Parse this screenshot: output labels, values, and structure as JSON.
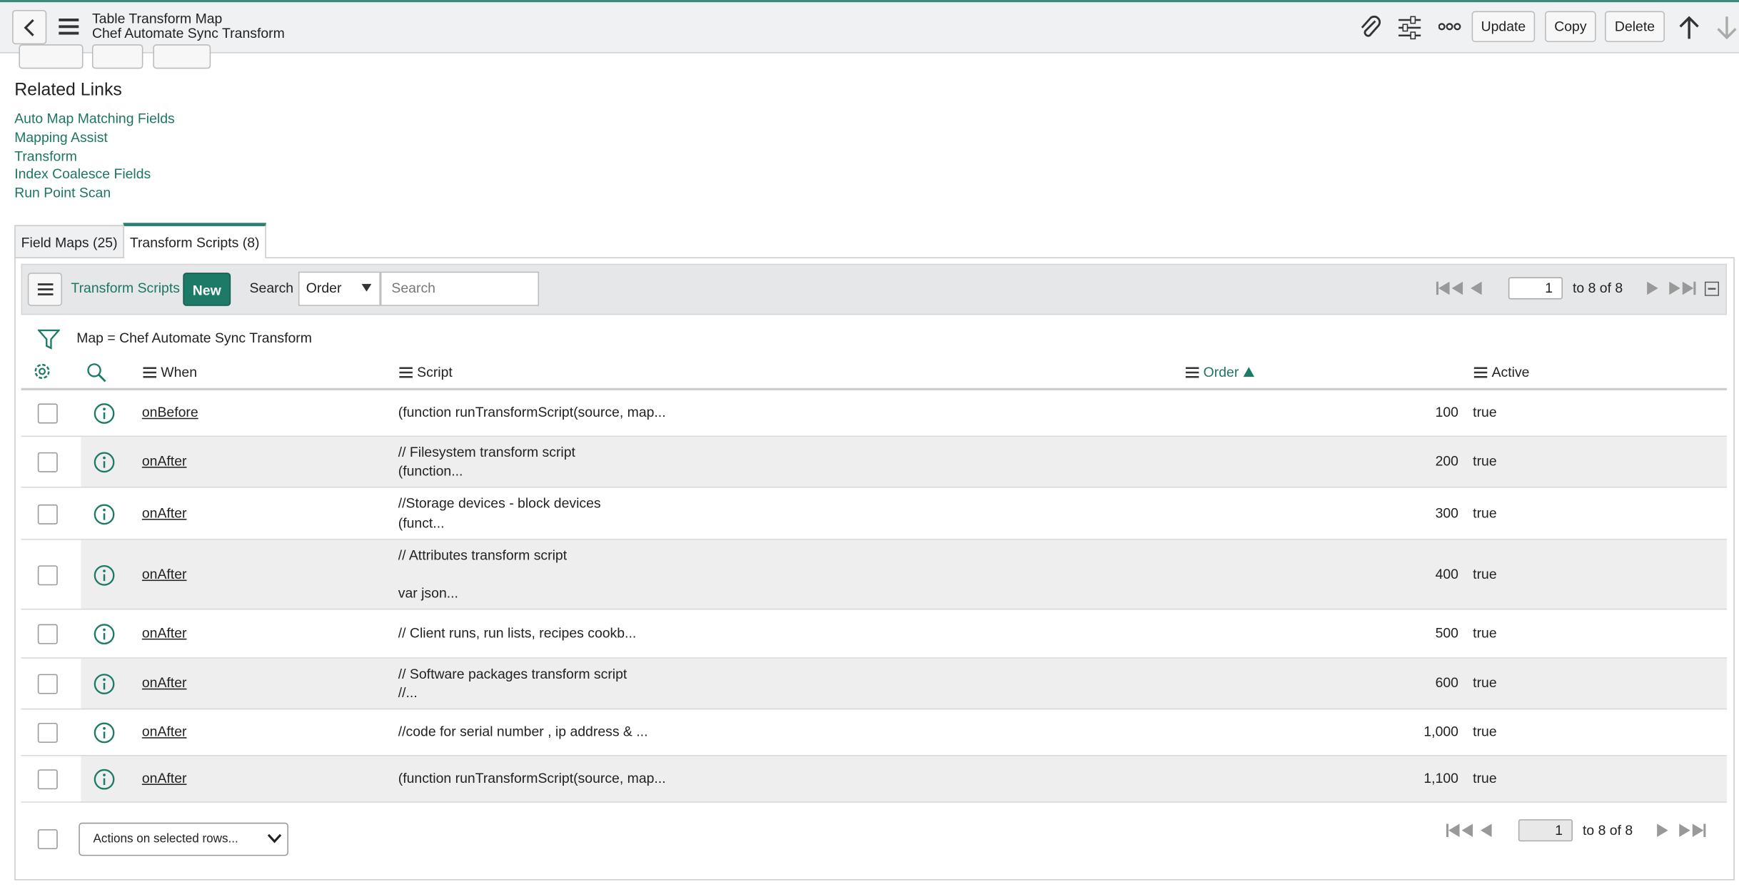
{
  "header": {
    "title": "Table Transform Map",
    "subtitle": "Chef Automate Sync Transform",
    "buttons": [
      "Update",
      "Copy",
      "Delete"
    ]
  },
  "related_links": {
    "title": "Related Links",
    "links": [
      "Auto Map Matching Fields",
      "Mapping Assist",
      "Transform",
      "Index Coalesce Fields",
      "Run Point Scan"
    ]
  },
  "tabs": [
    "Field Maps (25)",
    "Transform Scripts (8)"
  ],
  "list": {
    "title": "Transform Scripts",
    "new_button": "New",
    "search_label": "Search",
    "search_field": "Order",
    "search_placeholder": "Search",
    "pagination": {
      "page": "1",
      "range": "to 8 of 8"
    },
    "filter": "Map = Chef Automate Sync Transform",
    "columns": [
      "When",
      "Script",
      "Order",
      "Active"
    ],
    "rows": [
      {
        "when": "onBefore",
        "script": [
          "(function runTransformScript(source, map..."
        ],
        "order": "100",
        "active": "true"
      },
      {
        "when": "onAfter",
        "script": [
          "// Filesystem transform script",
          "(function..."
        ],
        "order": "200",
        "active": "true"
      },
      {
        "when": "onAfter",
        "script": [
          "//Storage devices - block devices",
          "(funct..."
        ],
        "order": "300",
        "active": "true"
      },
      {
        "when": "onAfter",
        "script": [
          "// Attributes transform script",
          "var json..."
        ],
        "order": "400",
        "active": "true"
      },
      {
        "when": "onAfter",
        "script": [
          "// Client runs, run lists, recipes cookb..."
        ],
        "order": "500",
        "active": "true"
      },
      {
        "when": "onAfter",
        "script": [
          "// Software packages transform script",
          "//..."
        ],
        "order": "600",
        "active": "true"
      },
      {
        "when": "onAfter",
        "script": [
          "//code for serial number , ip address & ..."
        ],
        "order": "1,000",
        "active": "true"
      },
      {
        "when": "onAfter",
        "script": [
          "(function runTransformScript(source, map..."
        ],
        "order": "1,100",
        "active": "true"
      }
    ]
  },
  "footer": {
    "actions": "Actions on selected rows...",
    "pagination": {
      "page": "1",
      "range": "to 8 of 8"
    }
  }
}
